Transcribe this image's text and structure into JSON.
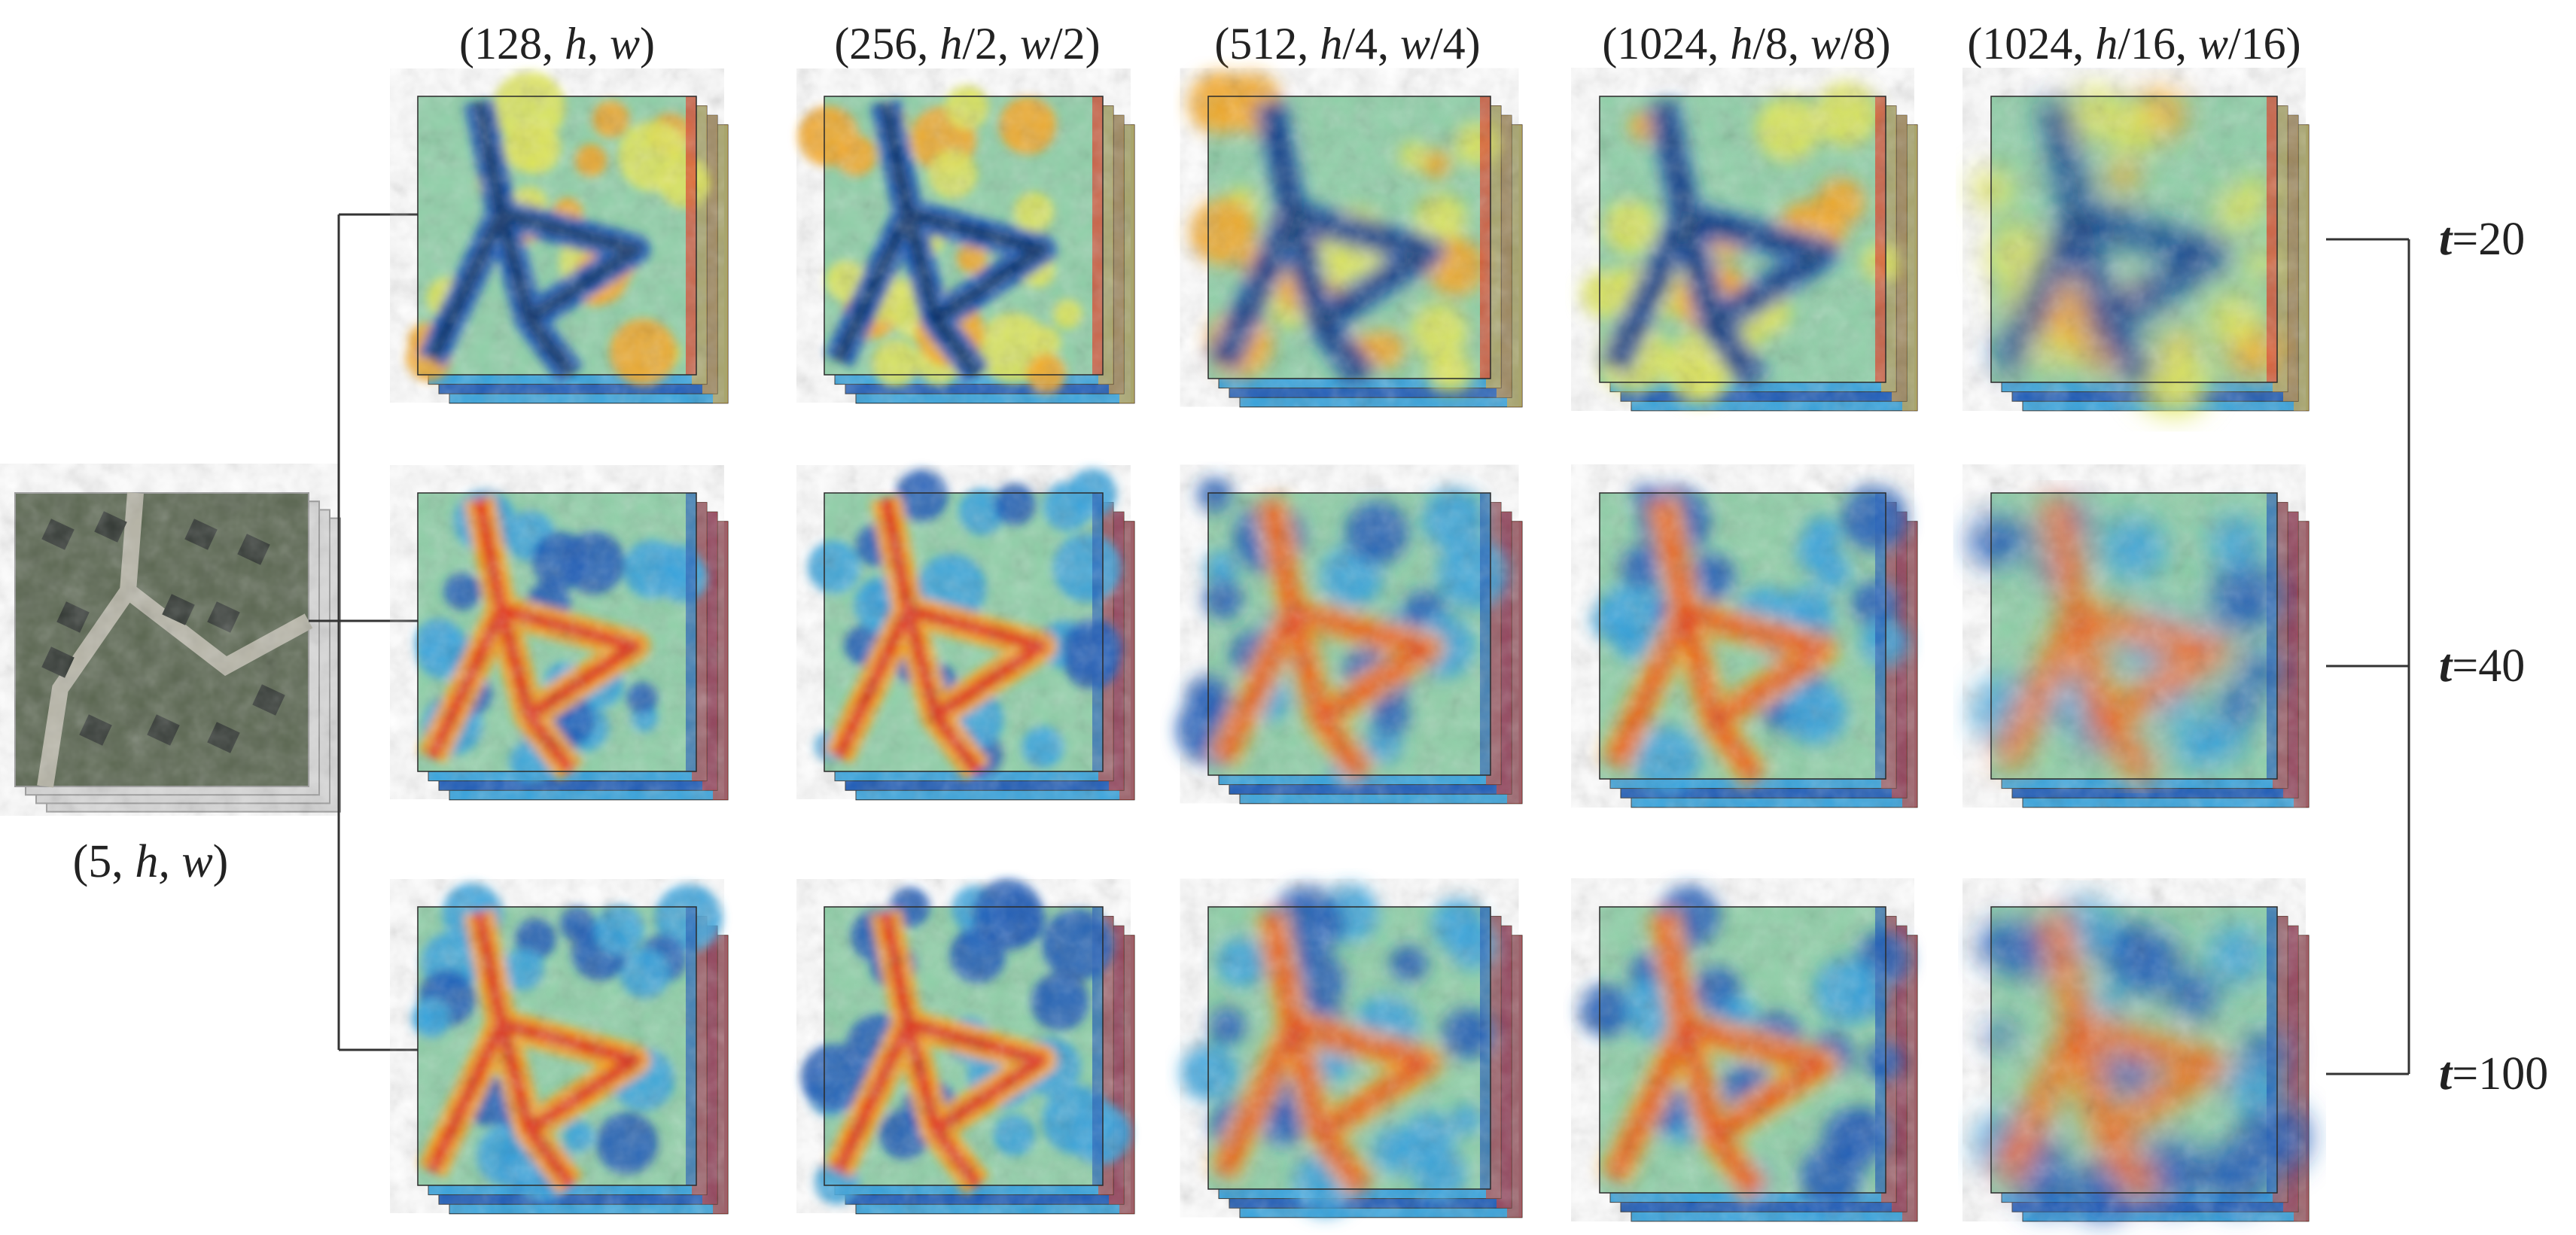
{
  "input": {
    "label_open": "(5, ",
    "label_h": "h,",
    "label_w": " w",
    "label_close": ")"
  },
  "columns": [
    {
      "pre": "(128, ",
      "hvar": "h",
      "hsuf": ", ",
      "wvar": "w",
      "wsuf": ")"
    },
    {
      "pre": "(256, ",
      "hvar": "h",
      "hsuf": "/2, ",
      "wvar": "w",
      "wsuf": "/2)"
    },
    {
      "pre": "(512, ",
      "hvar": "h",
      "hsuf": "/4, ",
      "wvar": "w",
      "wsuf": "/4)"
    },
    {
      "pre": "(1024, ",
      "hvar": "h",
      "hsuf": "/8, ",
      "wvar": "w",
      "wsuf": "/8)"
    },
    {
      "pre": "(1024, ",
      "hvar": "h",
      "hsuf": "/16, ",
      "wvar": "w",
      "wsuf": "/16)"
    }
  ],
  "rows": [
    {
      "t_var": "t",
      "t_eq": "=20",
      "tone": "cool"
    },
    {
      "t_var": "t",
      "t_eq": "=40",
      "tone": "warm"
    },
    {
      "t_var": "t",
      "t_eq": "=100",
      "tone": "warm"
    }
  ],
  "colors": {
    "jet": [
      "#08306b",
      "#1c5bb8",
      "#36a3dd",
      "#8fd0a8",
      "#dfe55a",
      "#f5a623",
      "#e2351e"
    ],
    "line": "#333333",
    "satellite": [
      "#5a6650",
      "#3d4636",
      "#7d8a6c",
      "#2f3530",
      "#9aa086"
    ]
  }
}
